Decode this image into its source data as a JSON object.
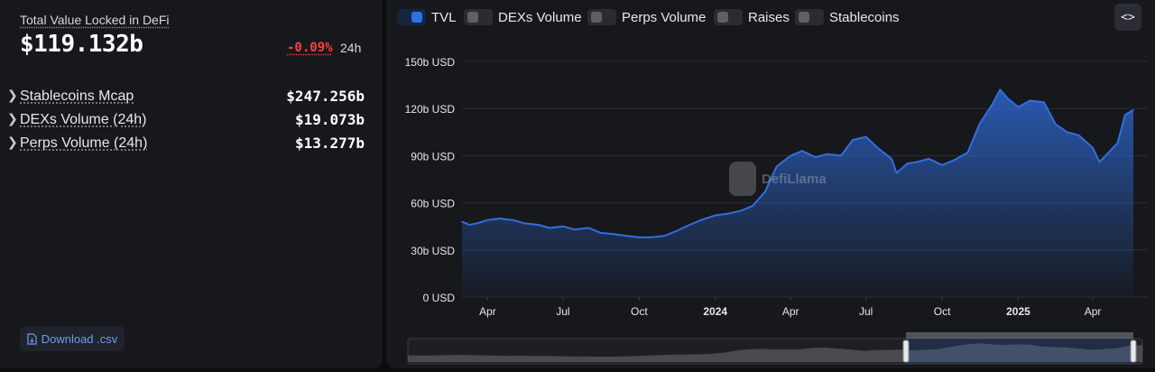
{
  "summary": {
    "tvl_label": "Total Value Locked in DeFi",
    "tvl_value": "$119.132b",
    "tvl_change": "-0.09%",
    "tvl_change_period": "24h"
  },
  "metrics": [
    {
      "label": "Stablecoins Mcap",
      "value": "$247.256b"
    },
    {
      "label": "DEXs Volume (24h)",
      "value": "$19.073b"
    },
    {
      "label": "Perps Volume (24h)",
      "value": "$13.277b"
    }
  ],
  "download_label": "Download .csv",
  "toggles": [
    {
      "label": "TVL",
      "on": true
    },
    {
      "label": "DEXs Volume",
      "on": false
    },
    {
      "label": "Perps Volume",
      "on": false
    },
    {
      "label": "Raises",
      "on": false
    },
    {
      "label": "Stablecoins",
      "on": false
    }
  ],
  "embed_label": "<>",
  "watermark": "DefiLlama",
  "colors": {
    "series": "#2f6fe0",
    "negative": "#f4433f",
    "accent": "#6a9cf0"
  },
  "chart_data": {
    "type": "area",
    "title": "",
    "xlabel": "",
    "ylabel": "",
    "ylim": [
      0,
      150
    ],
    "y_unit": "b USD",
    "y_ticks": [
      "0 USD",
      "30b USD",
      "60b USD",
      "90b USD",
      "120b USD",
      "150b USD"
    ],
    "x_ticks": [
      "Apr",
      "Jul",
      "Oct",
      "2024",
      "Apr",
      "Jul",
      "Oct",
      "2025",
      "Apr"
    ],
    "x_ticks_bold": [
      "2024",
      "2025"
    ],
    "x_range": [
      "2023-03-01",
      "2025-05-20"
    ],
    "grid": true,
    "legend": "top-left toggles",
    "series": [
      {
        "name": "TVL",
        "x": [
          "2023-03-01",
          "2023-03-10",
          "2023-03-20",
          "2023-04-01",
          "2023-04-15",
          "2023-05-01",
          "2023-05-15",
          "2023-06-01",
          "2023-06-15",
          "2023-07-01",
          "2023-07-15",
          "2023-08-01",
          "2023-08-15",
          "2023-09-01",
          "2023-09-15",
          "2023-10-01",
          "2023-10-15",
          "2023-11-01",
          "2023-11-15",
          "2023-12-01",
          "2023-12-15",
          "2024-01-01",
          "2024-01-15",
          "2024-02-01",
          "2024-02-15",
          "2024-03-01",
          "2024-03-15",
          "2024-04-01",
          "2024-04-15",
          "2024-05-01",
          "2024-05-15",
          "2024-06-01",
          "2024-06-15",
          "2024-07-01",
          "2024-07-15",
          "2024-08-01",
          "2024-08-07",
          "2024-08-20",
          "2024-09-01",
          "2024-09-15",
          "2024-10-01",
          "2024-10-15",
          "2024-11-01",
          "2024-11-15",
          "2024-12-01",
          "2024-12-10",
          "2024-12-20",
          "2025-01-01",
          "2025-01-15",
          "2025-02-01",
          "2025-02-15",
          "2025-03-01",
          "2025-03-15",
          "2025-04-01",
          "2025-04-09",
          "2025-04-20",
          "2025-05-01",
          "2025-05-10",
          "2025-05-20"
        ],
        "values": [
          48,
          46,
          47,
          49,
          50,
          49,
          47,
          46,
          44,
          45,
          43,
          44,
          41,
          40,
          39,
          38,
          38,
          39,
          42,
          46,
          49,
          52,
          53,
          55,
          58,
          67,
          83,
          90,
          93,
          89,
          91,
          90,
          100,
          102,
          95,
          88,
          79,
          85,
          86,
          88,
          84,
          87,
          92,
          110,
          123,
          132,
          126,
          121,
          125,
          124,
          110,
          105,
          103,
          95,
          86,
          92,
          98,
          116,
          119
        ]
      }
    ]
  }
}
